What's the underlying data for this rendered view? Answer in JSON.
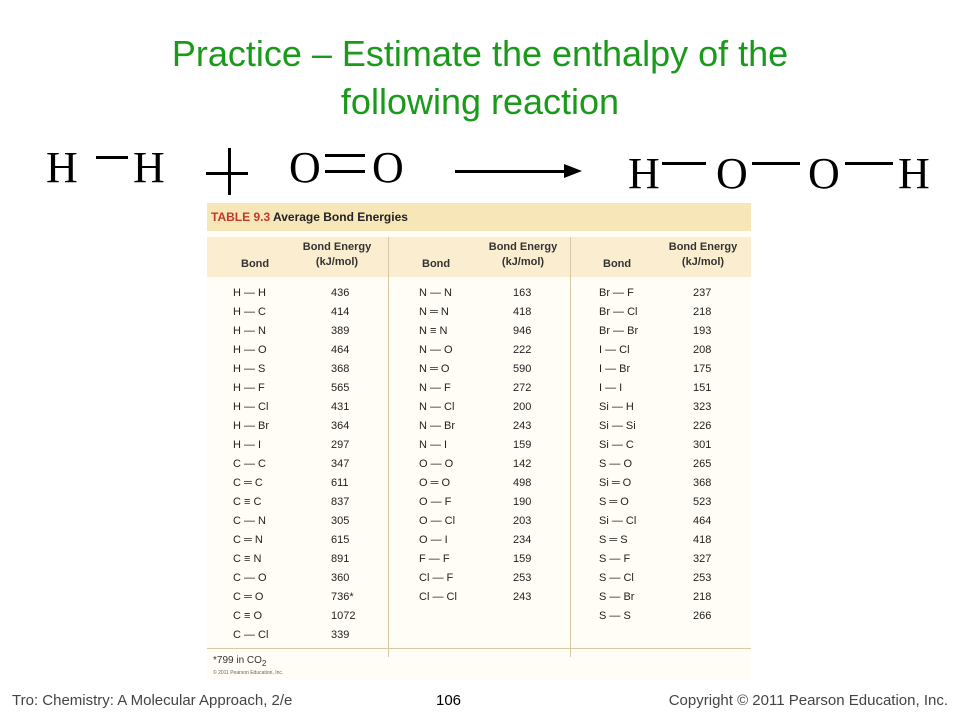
{
  "slide": {
    "title_line1": "Practice – Estimate the enthalpy of the",
    "title_line2": "following reaction"
  },
  "reaction": {
    "reactant1": {
      "atom1": "H",
      "atom2": "H"
    },
    "plus": "+",
    "reactant2": {
      "atom1": "O",
      "atom2": "O"
    },
    "product": {
      "atom1": "H",
      "atom2": "O",
      "atom3": "O",
      "atom4": "H"
    }
  },
  "table": {
    "title_prefix": "TABLE 9.3",
    "title": "Average Bond Energies",
    "col_bond": "Bond",
    "col_energy_line1": "Bond Energy",
    "col_energy_line2": "(kJ/mol)",
    "columns": [
      [
        {
          "bond": "H — H",
          "energy": "436"
        },
        {
          "bond": "H — C",
          "energy": "414"
        },
        {
          "bond": "H — N",
          "energy": "389"
        },
        {
          "bond": "H — O",
          "energy": "464"
        },
        {
          "bond": "H — S",
          "energy": "368"
        },
        {
          "bond": "H — F",
          "energy": "565"
        },
        {
          "bond": "H — Cl",
          "energy": "431"
        },
        {
          "bond": "H — Br",
          "energy": "364"
        },
        {
          "bond": "H — I",
          "energy": "297"
        },
        {
          "bond": "C — C",
          "energy": "347"
        },
        {
          "bond": "C ═ C",
          "energy": "611"
        },
        {
          "bond": "C ≡ C",
          "energy": "837"
        },
        {
          "bond": "C — N",
          "energy": "305"
        },
        {
          "bond": "C ═ N",
          "energy": "615"
        },
        {
          "bond": "C ≡ N",
          "energy": "891"
        },
        {
          "bond": "C — O",
          "energy": "360"
        },
        {
          "bond": "C ═ O",
          "energy": "736*"
        },
        {
          "bond": "C ≡ O",
          "energy": "1072"
        },
        {
          "bond": "C — Cl",
          "energy": "339"
        }
      ],
      [
        {
          "bond": "N — N",
          "energy": "163"
        },
        {
          "bond": "N ═ N",
          "energy": "418"
        },
        {
          "bond": "N ≡ N",
          "energy": "946"
        },
        {
          "bond": "N — O",
          "energy": "222"
        },
        {
          "bond": "N ═ O",
          "energy": "590"
        },
        {
          "bond": "N — F",
          "energy": "272"
        },
        {
          "bond": "N — Cl",
          "energy": "200"
        },
        {
          "bond": "N — Br",
          "energy": "243"
        },
        {
          "bond": "N — I",
          "energy": "159"
        },
        {
          "bond": "O — O",
          "energy": "142"
        },
        {
          "bond": "O ═ O",
          "energy": "498"
        },
        {
          "bond": "O — F",
          "energy": "190"
        },
        {
          "bond": "O — Cl",
          "energy": "203"
        },
        {
          "bond": "O — I",
          "energy": "234"
        },
        {
          "bond": "F — F",
          "energy": "159"
        },
        {
          "bond": "Cl — F",
          "energy": "253"
        },
        {
          "bond": "Cl — Cl",
          "energy": "243"
        }
      ],
      [
        {
          "bond": "Br — F",
          "energy": "237"
        },
        {
          "bond": "Br — Cl",
          "energy": "218"
        },
        {
          "bond": "Br — Br",
          "energy": "193"
        },
        {
          "bond": "I — Cl",
          "energy": "208"
        },
        {
          "bond": "I — Br",
          "energy": "175"
        },
        {
          "bond": "I — I",
          "energy": "151"
        },
        {
          "bond": "Si — H",
          "energy": "323"
        },
        {
          "bond": "Si — Si",
          "energy": "226"
        },
        {
          "bond": "Si — C",
          "energy": "301"
        },
        {
          "bond": "S — O",
          "energy": "265"
        },
        {
          "bond": "Si ═ O",
          "energy": "368"
        },
        {
          "bond": "S ═ O",
          "energy": "523"
        },
        {
          "bond": "Si — Cl",
          "energy": "464"
        },
        {
          "bond": "S ═ S",
          "energy": "418"
        },
        {
          "bond": "S — F",
          "energy": "327"
        },
        {
          "bond": "S — Cl",
          "energy": "253"
        },
        {
          "bond": "S — Br",
          "energy": "218"
        },
        {
          "bond": "S — S",
          "energy": "266"
        }
      ]
    ],
    "footnote": "*799 in CO",
    "footnote_sub": "2",
    "credit": "© 2011 Pearson Education, Inc."
  },
  "footer": {
    "left": "Tro: Chemistry: A Molecular Approach, 2/e",
    "page": "106",
    "right": "Copyright © 2011 Pearson Education, Inc."
  }
}
